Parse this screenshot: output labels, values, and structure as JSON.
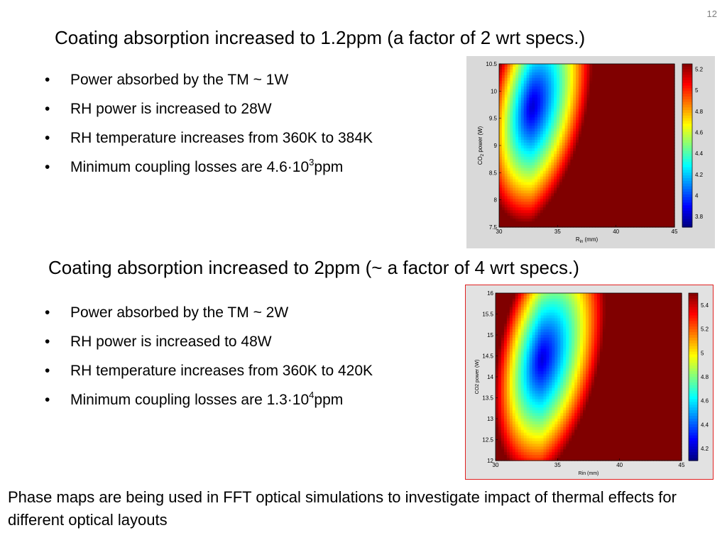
{
  "slide_number": "12",
  "section1": {
    "heading": "Coating absorption increased to 1.2ppm (a factor of 2 wrt specs.)",
    "bullets": [
      {
        "text": "Power absorbed by the TM ~ 1W"
      },
      {
        "text": "RH power is increased to 28W"
      },
      {
        "text": "RH temperature increases from 360K to 384K"
      },
      {
        "text": "Minimum coupling losses are 4.6·10",
        "sup": "3",
        "suffix": "ppm"
      }
    ]
  },
  "section2": {
    "heading": "Coating absorption increased to 2ppm (~ a factor of 4 wrt specs.)",
    "bullets": [
      {
        "text": "Power absorbed by the TM ~ 2W"
      },
      {
        "text": "RH power is increased to 48W"
      },
      {
        "text": "RH temperature increases from 360K to 420K"
      },
      {
        "text": "Minimum coupling losses are 1.3·10",
        "sup": "4",
        "suffix": "ppm"
      }
    ]
  },
  "footer": "Phase maps are being used in FFT optical simulations to investigate impact of thermal effects for different optical layouts",
  "chart_data": [
    {
      "type": "heatmap",
      "xlabel": "R",
      "xlabel_sub": "in",
      "xlabel_unit": "(mm)",
      "ylabel": "CO",
      "ylabel_sub": "2",
      "ylabel_unit": "power (W)",
      "xlim": [
        30,
        45
      ],
      "ylim": [
        7.5,
        10.5
      ],
      "x_ticks": [
        "30",
        "35",
        "40",
        "45"
      ],
      "y_ticks": [
        "7.5",
        "8",
        "8.5",
        "9",
        "9.5",
        "10",
        "10.5"
      ],
      "colorbar_ticks": [
        "3.8",
        "4",
        "4.2",
        "4.4",
        "4.6",
        "4.8",
        "5",
        "5.2"
      ],
      "colorbar_range": [
        3.7,
        5.25
      ],
      "minimum": {
        "x": 32.8,
        "y": 9.7
      },
      "colormap": "jet"
    },
    {
      "type": "heatmap",
      "xlabel": "Rin (mm)",
      "ylabel": "CO2 power (W)",
      "xlim": [
        30,
        45
      ],
      "ylim": [
        12,
        16
      ],
      "x_ticks": [
        "30",
        "35",
        "40",
        "45"
      ],
      "y_ticks": [
        "12",
        "12.5",
        "13",
        "13.5",
        "14",
        "14.5",
        "15",
        "15.5",
        "16"
      ],
      "colorbar_ticks": [
        "4.2",
        "4.4",
        "4.6",
        "4.8",
        "5",
        "5.2",
        "5.4"
      ],
      "colorbar_range": [
        4.1,
        5.5
      ],
      "minimum": {
        "x": 33.7,
        "y": 14.4
      },
      "colormap": "jet",
      "border_color": "#e02020"
    }
  ]
}
